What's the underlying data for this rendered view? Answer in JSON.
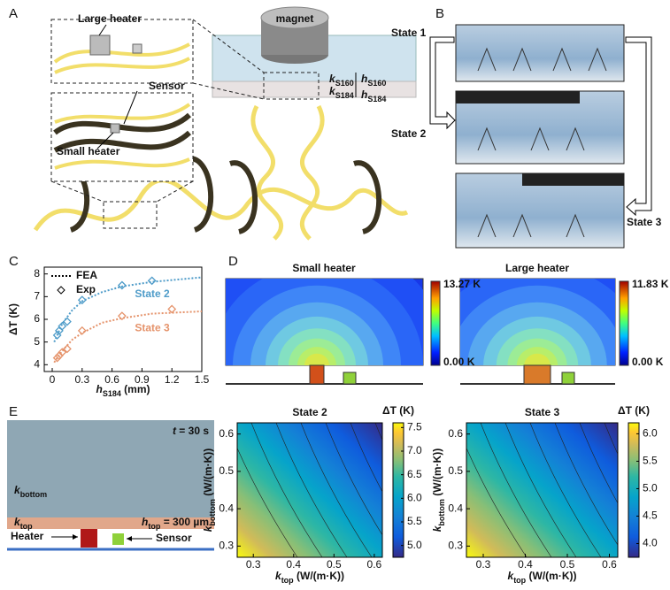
{
  "panel_labels": [
    "A",
    "B",
    "C",
    "D",
    "E"
  ],
  "panel_a": {
    "magnet": "magnet",
    "large_heater": "Large heater",
    "sensor": "Sensor",
    "small_heater": "Small heater",
    "k_s160": {
      "main": "k",
      "sub": "S160"
    },
    "h_s160": {
      "main": "h",
      "sub": "S160"
    },
    "k_s184": {
      "main": "k",
      "sub": "S184"
    },
    "h_s184": {
      "main": "h",
      "sub": "S184"
    }
  },
  "panel_b": {
    "states": [
      "State 1",
      "State 2",
      "State 3"
    ]
  },
  "panel_d": {
    "maps": [
      {
        "title": "Small heater",
        "max": "13.27 K",
        "min": "0.00 K"
      },
      {
        "title": "Large heater",
        "max": "11.83 K",
        "min": "0.00 K"
      }
    ]
  },
  "panel_e": {
    "time": {
      "main": "t",
      "rest": " = 30 s"
    },
    "k_bottom": {
      "main": "k",
      "sub": "bottom"
    },
    "k_top": {
      "main": "k",
      "sub": "top"
    },
    "h_top": {
      "main": "h",
      "sub": "top",
      "rest": " = 300 µm"
    },
    "heater": "Heater",
    "sensor": "Sensor"
  },
  "chart_data": [
    {
      "type": "line",
      "x_label": {
        "main": "h",
        "sub": "S184",
        "rest": " (mm)"
      },
      "y_label": "ΔT (K)",
      "xlim": [
        -0.08,
        1.5
      ],
      "xticks": [
        0,
        0.3,
        0.6,
        0.9,
        1.2,
        1.5
      ],
      "ylim": [
        3.7,
        8.3
      ],
      "yticks": [
        4,
        5,
        6,
        7,
        8
      ],
      "legend": [
        "FEA",
        "Exp"
      ],
      "series": [
        {
          "name": "State 2",
          "color": "#4f9cc9",
          "fea_x": [
            0.02,
            0.05,
            0.1,
            0.2,
            0.3,
            0.5,
            0.7,
            1.0,
            1.5
          ],
          "fea_values": [
            5.0,
            5.3,
            5.8,
            6.4,
            6.8,
            7.2,
            7.45,
            7.65,
            7.85
          ],
          "exp_x": [
            0.05,
            0.07,
            0.1,
            0.15,
            0.3,
            0.7,
            1.0
          ],
          "exp_values": [
            5.3,
            5.5,
            5.7,
            5.9,
            6.85,
            7.5,
            7.7
          ]
        },
        {
          "name": "State 3",
          "color": "#e5936b",
          "fea_x": [
            0.02,
            0.05,
            0.1,
            0.2,
            0.3,
            0.5,
            0.7,
            1.0,
            1.5
          ],
          "fea_values": [
            4.1,
            4.3,
            4.6,
            5.1,
            5.4,
            5.85,
            6.05,
            6.25,
            6.35
          ],
          "exp_x": [
            0.05,
            0.07,
            0.1,
            0.15,
            0.3,
            0.7,
            1.2
          ],
          "exp_values": [
            4.3,
            4.4,
            4.55,
            4.7,
            5.5,
            6.15,
            6.45
          ]
        }
      ]
    },
    {
      "type": "contour",
      "title": "State 2",
      "x_label": {
        "main": "k",
        "sub": "top",
        "rest": " (W/(m·K))"
      },
      "y_label": {
        "main": "k",
        "sub": "bottom",
        "rest": " (W/(m·K))"
      },
      "xlim": [
        0.26,
        0.62
      ],
      "xticks": [
        0.3,
        0.4,
        0.5,
        0.6
      ],
      "ylim": [
        0.27,
        0.63
      ],
      "yticks": [
        0.3,
        0.4,
        0.5,
        0.6
      ],
      "colorbar_label": "ΔT (K)",
      "clim": [
        4.75,
        7.6
      ],
      "cticks": [
        {
          "value": 5,
          "label": "5.0"
        },
        5.5,
        {
          "value": 6,
          "label": "6.0"
        },
        6.5,
        {
          "value": 7,
          "label": "7.0"
        },
        7.5
      ]
    },
    {
      "type": "contour",
      "title": "State 3",
      "x_label": {
        "main": "k",
        "sub": "top",
        "rest": " (W/(m·K))"
      },
      "y_label": {
        "main": "k",
        "sub": "bottom",
        "rest": " (W/(m·K))"
      },
      "xlim": [
        0.26,
        0.62
      ],
      "xticks": [
        0.3,
        0.4,
        0.5,
        0.6
      ],
      "ylim": [
        0.27,
        0.63
      ],
      "yticks": [
        0.3,
        0.4,
        0.5,
        0.6
      ],
      "colorbar_label": "ΔT (K)",
      "clim": [
        3.75,
        6.2
      ],
      "cticks": [
        {
          "value": 4,
          "label": "4.0"
        },
        4.5,
        {
          "value": 5,
          "label": "5.0"
        },
        5.5,
        {
          "value": 6,
          "label": "6.0"
        }
      ]
    }
  ]
}
